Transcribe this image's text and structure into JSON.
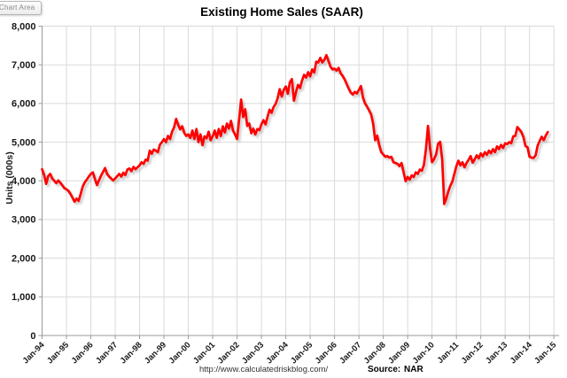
{
  "window": {
    "tooltip_label": "Chart Area"
  },
  "chart_data": {
    "type": "line",
    "title": "Existing Home Sales (SAAR)",
    "ylabel": "Units (000s)",
    "xlabel": "",
    "ylim": [
      0,
      8000
    ],
    "ytick_step": 1000,
    "xtick_labels": [
      "Jan-94",
      "Jan-95",
      "Jan-96",
      "Jan-97",
      "Jan-98",
      "Jan-99",
      "Jan-00",
      "Jan-01",
      "Jan-02",
      "Jan-03",
      "Jan-04",
      "Jan-05",
      "Jan-06",
      "Jan-07",
      "Jan-08",
      "Jan-09",
      "Jan-10",
      "Jan-11",
      "Jan-12",
      "Jan-13",
      "Jan-14",
      "Jan-15"
    ],
    "grid": true,
    "legend_position": "none",
    "line_color": "#FF0000",
    "gridline_color": "#d9d9d9",
    "axis_color": "#9a9a9a",
    "start_month": "Jan-94",
    "end_month": "Oct-14",
    "frequency": "monthly",
    "series": [
      {
        "name": "Existing Home Sales (SAAR, thousands)",
        "values": [
          4300,
          4150,
          3920,
          4120,
          4180,
          4060,
          4000,
          3940,
          4010,
          3950,
          3880,
          3810,
          3780,
          3740,
          3660,
          3560,
          3460,
          3540,
          3480,
          3660,
          3850,
          3960,
          4030,
          4110,
          4180,
          4220,
          4050,
          3890,
          4010,
          4130,
          4230,
          4330,
          4180,
          4110,
          4060,
          4010,
          4060,
          4120,
          4180,
          4110,
          4210,
          4150,
          4290,
          4320,
          4250,
          4360,
          4300,
          4350,
          4400,
          4480,
          4440,
          4550,
          4520,
          4780,
          4700,
          4810,
          4780,
          4740,
          4930,
          5000,
          5080,
          5000,
          5160,
          5080,
          5270,
          5380,
          5600,
          5450,
          5330,
          5410,
          5240,
          5160,
          5200,
          5110,
          5300,
          5080,
          5340,
          5000,
          5200,
          4920,
          5150,
          5100,
          5270,
          5050,
          5150,
          5300,
          5110,
          5340,
          5160,
          5410,
          5250,
          5480,
          5350,
          5550,
          5300,
          5200,
          5080,
          5580,
          6100,
          5650,
          5850,
          5420,
          5480,
          5230,
          5350,
          5200,
          5340,
          5310,
          5460,
          5570,
          5460,
          5650,
          5840,
          5760,
          5910,
          5990,
          6140,
          6370,
          6180,
          6350,
          6440,
          6250,
          6550,
          6630,
          6070,
          6290,
          6480,
          6400,
          6590,
          6740,
          6670,
          6810,
          6700,
          6880,
          6800,
          7080,
          7060,
          7180,
          7060,
          7130,
          7250,
          7100,
          6950,
          6880,
          6900,
          6850,
          6920,
          6780,
          6710,
          6620,
          6500,
          6380,
          6280,
          6230,
          6300,
          6260,
          6350,
          6450,
          6150,
          6000,
          5920,
          5820,
          5720,
          5480,
          5050,
          5170,
          4920,
          4740,
          4680,
          4620,
          4640,
          4600,
          4620,
          4480,
          4460,
          4440,
          4380,
          4460,
          4220,
          3990,
          4100,
          4030,
          4140,
          4100,
          4220,
          4180,
          4290,
          4260,
          4410,
          4820,
          5420,
          4850,
          4480,
          4560,
          4680,
          4960,
          5010,
          4550,
          3400,
          3540,
          3720,
          3870,
          3980,
          4180,
          4380,
          4520,
          4400,
          4480,
          4350,
          4460,
          4540,
          4640,
          4470,
          4550,
          4660,
          4580,
          4710,
          4630,
          4740,
          4670,
          4780,
          4710,
          4820,
          4740,
          4890,
          4820,
          4930,
          4850,
          4970,
          4950,
          5000,
          4970,
          5150,
          5160,
          5390,
          5330,
          5260,
          5130,
          4900,
          4870,
          4620,
          4600,
          4590,
          4660,
          4910,
          5030,
          5140,
          5050,
          5170,
          5260
        ]
      }
    ],
    "footer": {
      "url": "http://www.calculatedriskblog.com/",
      "source_label": "Source:",
      "source_value": "NAR"
    }
  }
}
